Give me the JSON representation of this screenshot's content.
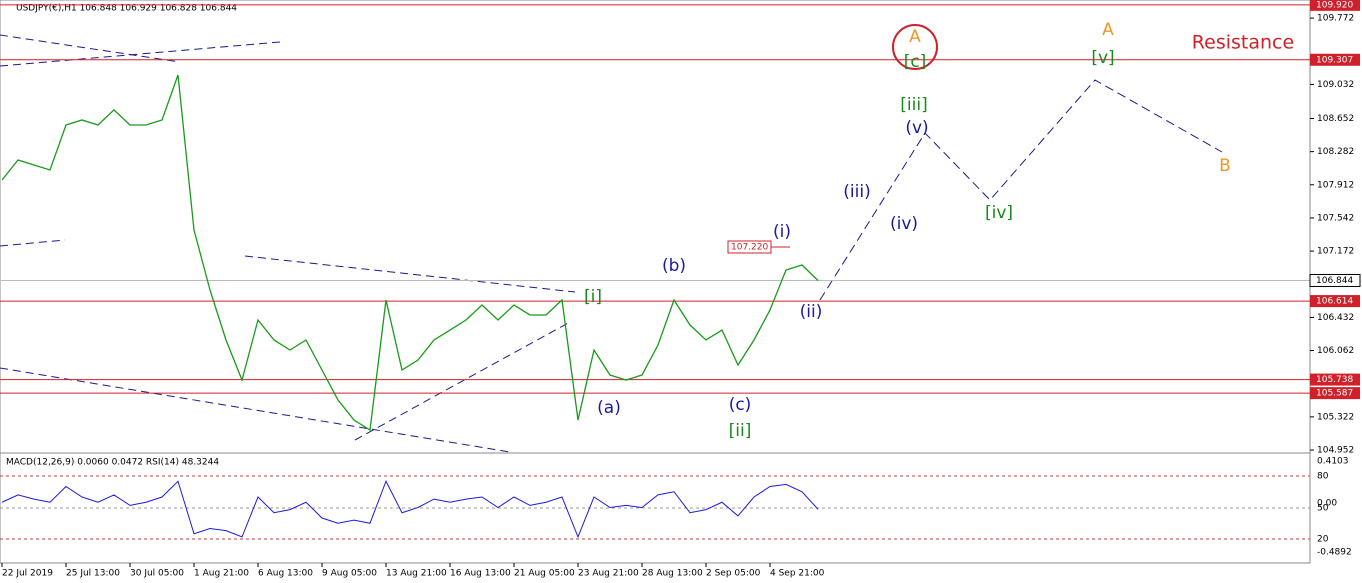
{
  "header": "USDJPY(€),H1  106.848 106.929 106.828 106.844",
  "chart_data": {
    "type": "line",
    "categories": [
      "22 Jul 2019",
      null,
      null,
      null,
      "25 Jul 13:00",
      null,
      null,
      null,
      "30 Jul 05:00",
      null,
      null,
      null,
      "1 Aug 21:00",
      null,
      null,
      null,
      "6 Aug 13:00",
      null,
      null,
      null,
      "9 Aug 05:00",
      null,
      null,
      null,
      "13 Aug 21:00",
      null,
      null,
      null,
      "16 Aug 13:00",
      null,
      null,
      null,
      "21 Aug 05:00",
      null,
      null,
      null,
      "23 Aug 21:00",
      null,
      null,
      null,
      "28 Aug 13:00",
      null,
      null,
      null,
      "2 Sep 05:00",
      null,
      null,
      null,
      "4 Sep 21:00",
      null,
      null,
      null
    ],
    "series": [
      {
        "name": "USDJPY",
        "color": "#1a9a1a",
        "values": [
          107.965,
          108.189,
          108.133,
          108.077,
          108.579,
          108.635,
          108.579,
          108.747,
          108.579,
          108.579,
          108.635,
          109.137,
          107.407,
          106.738,
          106.18,
          105.733,
          106.403,
          106.18,
          106.068,
          106.18,
          105.845,
          105.51,
          105.287,
          105.175,
          106.626,
          105.845,
          105.956,
          106.18,
          106.291,
          106.403,
          106.57,
          106.403,
          106.57,
          106.459,
          106.459,
          106.626,
          105.287,
          106.068,
          105.789,
          105.733,
          105.789,
          106.124,
          106.626,
          106.347,
          106.18,
          106.291,
          105.901,
          106.18,
          106.515,
          106.961,
          107.017,
          106.844
        ]
      }
    ],
    "ylim": [
      104.93,
      109.974
    ],
    "yticks": [
      109.772,
      109.032,
      108.652,
      108.282,
      107.912,
      107.542,
      107.172,
      106.432,
      106.062,
      105.322,
      104.952
    ],
    "levels": [
      {
        "value": 109.92,
        "label": "109.920"
      },
      109.307,
      106.614,
      105.738,
      105.587
    ],
    "level_color": "#d0202a",
    "current": 106.844,
    "annotations": [
      {
        "text": "A",
        "color": "#f0952a"
      },
      {
        "text": "[c]",
        "color": "#1a8a1a"
      },
      {
        "text": "A",
        "color": "#f0952a"
      },
      {
        "text": "[v]",
        "color": "#1a8a1a"
      },
      {
        "text": "Resistance",
        "color": "#d0202a"
      },
      {
        "text": "[iii]",
        "color": "#1a8a1a"
      },
      {
        "text": "(v)",
        "color": "#1a1aa0"
      },
      {
        "text": "(iii)",
        "color": "#1a1aa0"
      },
      {
        "text": "(iv)",
        "color": "#1a1aa0"
      },
      {
        "text": "[iv]",
        "color": "#1a8a1a"
      },
      {
        "text": "B",
        "color": "#f0952a"
      },
      {
        "text": "(i)",
        "color": "#1a1aa0"
      },
      {
        "text": "(b)",
        "color": "#1a1aa0"
      },
      {
        "text": "[i]",
        "color": "#1a8a1a"
      },
      {
        "text": "(ii)",
        "color": "#1a1aa0"
      },
      {
        "text": "(a)",
        "color": "#1a1aa0"
      },
      {
        "text": "(c)",
        "color": "#1a1aa0"
      },
      {
        "text": "[ii]",
        "color": "#1a8a1a"
      }
    ],
    "price_tag": "107.220",
    "indicator": {
      "label": "MACD(12,26,9) 0.0060 0.0472 RSI(14) 48.3244",
      "axis_labels": [
        "0.4103",
        "80",
        "0.00",
        "50",
        "20",
        "-0.4892"
      ],
      "rsi_color": "#1a1ae0",
      "rsi_values": [
        55,
        62,
        58,
        55,
        70,
        60,
        55,
        62,
        52,
        55,
        60,
        75,
        25,
        30,
        28,
        22,
        60,
        45,
        48,
        55,
        40,
        35,
        38,
        35,
        75,
        45,
        50,
        58,
        55,
        58,
        60,
        50,
        60,
        52,
        55,
        60,
        22,
        60,
        50,
        52,
        50,
        62,
        65,
        45,
        48,
        55,
        42,
        60,
        70,
        72,
        65,
        48.3244
      ]
    }
  }
}
